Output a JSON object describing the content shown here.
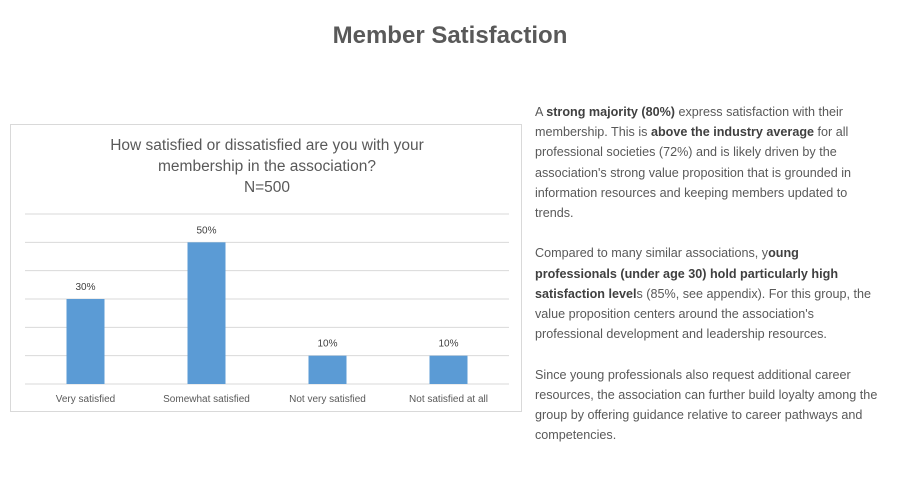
{
  "page": {
    "title": "Member Satisfaction"
  },
  "chart_data": {
    "type": "bar",
    "title_lines": [
      "How satisfied or dissatisfied are you with your",
      "membership in the association?",
      "N=500"
    ],
    "categories": [
      "Very satisfied",
      "Somewhat satisfied",
      "Not very satisfied",
      "Not satisfied at all"
    ],
    "values": [
      30,
      50,
      10,
      10
    ],
    "data_labels": [
      "30%",
      "50%",
      "10%",
      "10%"
    ],
    "ylim": [
      0,
      60
    ],
    "ytick_step": 10,
    "grid": true,
    "legend": "none",
    "bar_color": "#5b9bd5"
  },
  "commentary": {
    "p1": [
      "A ",
      "strong majority (80%)",
      " express satisfaction with their membership. This is ",
      "above the industry average",
      " for all professional societies (72%) and is likely driven by the association's strong value proposition that is grounded in information resources and keeping members updated to trends."
    ],
    "p2": [
      "Compared to many similar associations, y",
      "oung professionals (under age 30) hold particularly high satisfaction level",
      "s (85%, see appendix). For this group, the value proposition centers around the association's professional development and leadership resources."
    ],
    "p3": [
      "Since young professionals also request additional career resources, the association can further build loyalty among the group by offering guidance relative to career pathways and competencies."
    ]
  }
}
